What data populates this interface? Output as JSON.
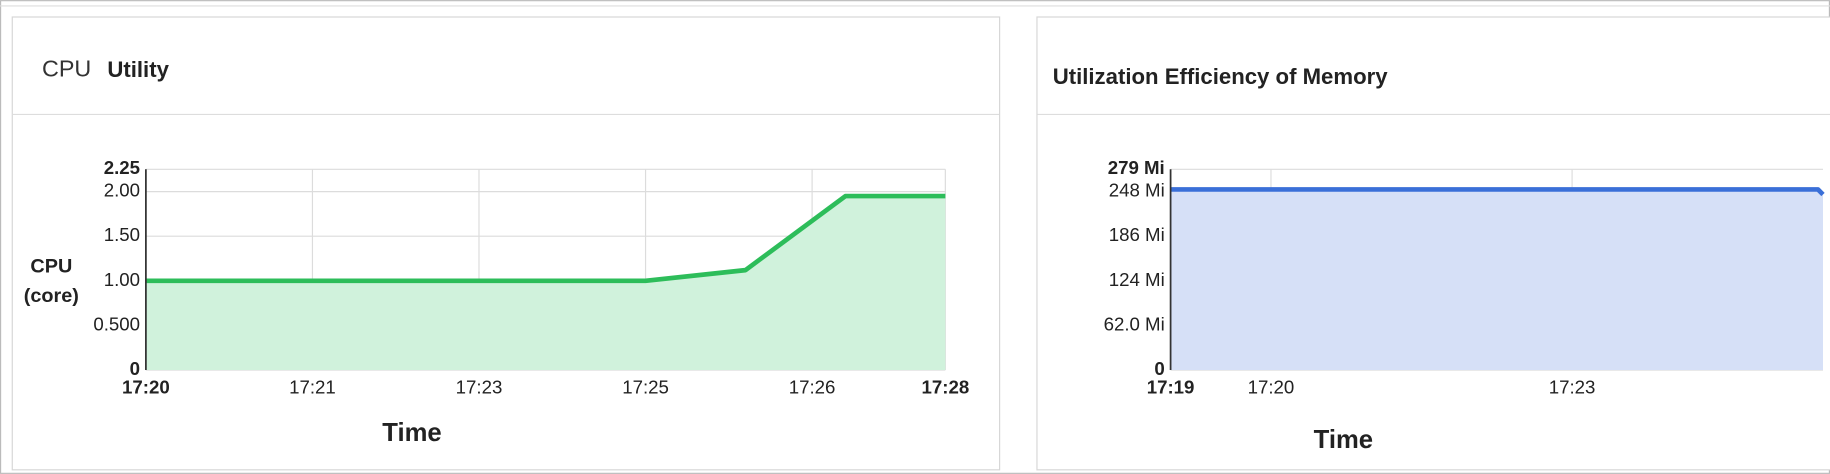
{
  "chart_data": [
    {
      "type": "area",
      "title": [
        "CPU",
        "Utility"
      ],
      "y_label": [
        "CPU",
        "(core)"
      ],
      "x_label": "Time",
      "x": [
        0,
        3,
        3.6,
        4.2,
        4.8
      ],
      "values": [
        1.0,
        1.0,
        1.12,
        1.95,
        1.95
      ],
      "color": "#2dbd5a",
      "fill": "#d0f2dc",
      "xlim": [
        0,
        4.8
      ],
      "xticks": [
        {
          "value": 0,
          "label": "17:20"
        },
        {
          "value": 1,
          "label": "17:21"
        },
        {
          "value": 2,
          "label": "17:23"
        },
        {
          "value": 3,
          "label": "17:25"
        },
        {
          "value": 4,
          "label": "17:26"
        },
        {
          "value": 4.8,
          "label": "17:28"
        }
      ],
      "ylim": [
        0,
        2.25
      ],
      "yticks": [
        0,
        {
          "value": 0.5,
          "label": "0.500"
        },
        {
          "value": 1,
          "label": "1.00"
        },
        {
          "value": 1.5,
          "label": "1.50"
        },
        {
          "value": 2,
          "label": "2.00"
        },
        {
          "value": 2.25,
          "label": "2.25"
        }
      ],
      "grid": true
    },
    {
      "type": "area",
      "title": "Utilization Efficiency of Memory",
      "x_label": "Time",
      "x": [
        0,
        6.45,
        6.5
      ],
      "values": [
        251,
        251,
        244
      ],
      "color": "#3a6fd8",
      "fill": "#d6e0f7",
      "xlim": [
        0,
        6.5
      ],
      "xticks": [
        {
          "value": 0,
          "label": "17:19"
        },
        {
          "value": 1,
          "label": "17:20"
        },
        {
          "value": 4,
          "label": "17:23"
        }
      ],
      "ylim": [
        0,
        279
      ],
      "yticks": [
        0,
        {
          "value": 62,
          "label": "62.0 Mi"
        },
        {
          "value": 124,
          "label": "124 Mi"
        },
        {
          "value": 186,
          "label": "186 Mi"
        },
        {
          "value": 248,
          "label": "248 Mi"
        },
        {
          "value": 279,
          "label": "279 Mi"
        }
      ],
      "grid": true
    }
  ]
}
